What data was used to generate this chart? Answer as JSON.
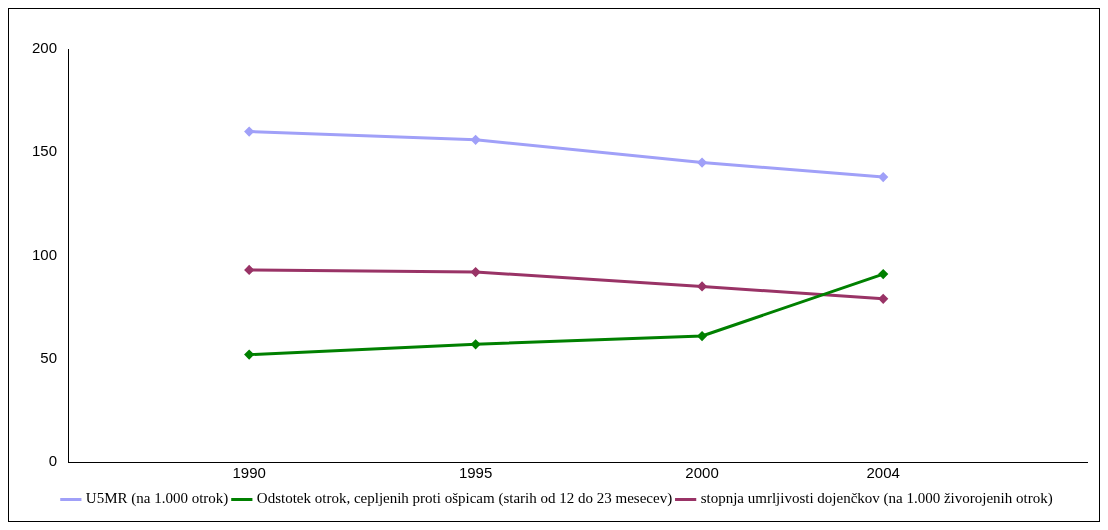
{
  "chart_data": {
    "type": "line",
    "x": [
      1990,
      1995,
      2000,
      2004
    ],
    "xlim": [
      1986,
      2008.5
    ],
    "xticks": [
      1990,
      1995,
      2000,
      2004
    ],
    "ylim": [
      0,
      200
    ],
    "yticks": [
      0,
      50,
      100,
      150,
      200
    ],
    "grid": false,
    "legend": "bottom",
    "marker": "diamond",
    "line_style": "solid",
    "series": [
      {
        "name": "U5MR (na 1.000 otrok)",
        "color": "#a0a0f8",
        "values": [
          160,
          156,
          145,
          138
        ]
      },
      {
        "name": "Odstotek otrok, cepljenih proti ošpicam (starih od 12 do 23 mesecev)",
        "color": "#008000",
        "values": [
          52,
          57,
          61,
          91
        ]
      },
      {
        "name": "stopnja umrljivosti dojenčkov (na 1.000 živorojenih otrok)",
        "color": "#993366",
        "values": [
          93,
          92,
          85,
          79
        ]
      }
    ]
  }
}
